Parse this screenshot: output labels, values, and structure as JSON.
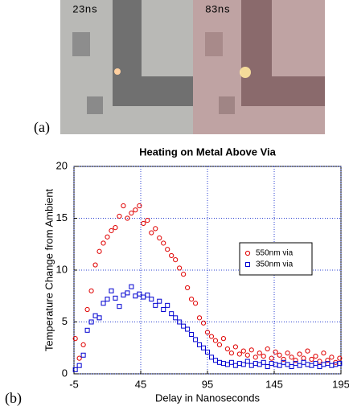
{
  "panel_a": {
    "labels": [
      "23ns",
      "83ns"
    ],
    "caption": "(a)"
  },
  "panel_b": {
    "caption": "(b)"
  },
  "chart_data": {
    "type": "scatter",
    "title": "Heating on Metal Above Via",
    "x_label": "Delay in Nanoseconds",
    "y_label": "Temperature Change from Ambient",
    "xlim": [
      -5,
      195
    ],
    "xticks": [
      -5,
      45,
      95,
      145,
      195
    ],
    "ylim": [
      0,
      20
    ],
    "yticks": [
      0,
      5,
      10,
      15,
      20
    ],
    "grid": true,
    "legend": "right",
    "x": [
      -4,
      -1,
      2,
      5,
      8,
      11,
      14,
      17,
      20,
      23,
      26,
      29,
      32,
      35,
      38,
      41,
      44,
      47,
      50,
      53,
      56,
      59,
      62,
      65,
      68,
      71,
      74,
      77,
      80,
      83,
      86,
      89,
      92,
      95,
      98,
      101,
      104,
      107,
      110,
      113,
      116,
      119,
      122,
      125,
      128,
      131,
      134,
      137,
      140,
      143,
      146,
      149,
      152,
      155,
      158,
      161,
      164,
      167,
      170,
      173,
      176,
      179,
      182,
      185,
      188,
      191,
      194
    ],
    "series": [
      {
        "name": "550nm via",
        "color": "#e00000",
        "marker": "circle",
        "values": [
          3.4,
          1.5,
          2.8,
          6.2,
          8.0,
          10.5,
          11.8,
          12.6,
          13.2,
          13.8,
          14.1,
          15.2,
          16.2,
          15.0,
          15.5,
          15.8,
          16.2,
          14.5,
          14.8,
          13.6,
          14.0,
          13.1,
          12.6,
          12.0,
          11.4,
          11.0,
          10.2,
          9.6,
          8.3,
          7.2,
          6.8,
          5.4,
          4.9,
          4.0,
          3.6,
          3.2,
          2.8,
          3.4,
          2.4,
          2.0,
          2.6,
          1.9,
          2.2,
          1.8,
          2.3,
          1.6,
          2.0,
          1.7,
          2.4,
          1.5,
          2.1,
          1.8,
          1.4,
          2.0,
          1.6,
          1.3,
          1.9,
          1.5,
          2.2,
          1.4,
          1.7,
          1.2,
          2.0,
          1.3,
          1.6,
          1.1,
          1.5
        ]
      },
      {
        "name": "350nm via",
        "color": "#0000d0",
        "marker": "square",
        "values": [
          0.4,
          0.8,
          1.8,
          4.2,
          5.0,
          5.6,
          5.4,
          6.8,
          7.2,
          8.0,
          7.3,
          6.5,
          7.6,
          7.8,
          8.4,
          7.5,
          7.7,
          7.4,
          7.6,
          7.2,
          6.6,
          7.0,
          6.2,
          6.6,
          5.8,
          5.4,
          5.0,
          4.6,
          4.3,
          3.8,
          3.3,
          2.8,
          2.5,
          2.1,
          1.6,
          1.3,
          1.1,
          1.0,
          0.9,
          1.1,
          0.8,
          1.0,
          0.9,
          1.2,
          0.8,
          1.0,
          0.9,
          1.1,
          0.7,
          1.0,
          0.9,
          0.8,
          1.1,
          0.9,
          0.7,
          1.0,
          0.8,
          1.1,
          0.9,
          0.8,
          1.0,
          0.7,
          0.9,
          1.0,
          0.8,
          0.9,
          1.0
        ]
      }
    ]
  }
}
